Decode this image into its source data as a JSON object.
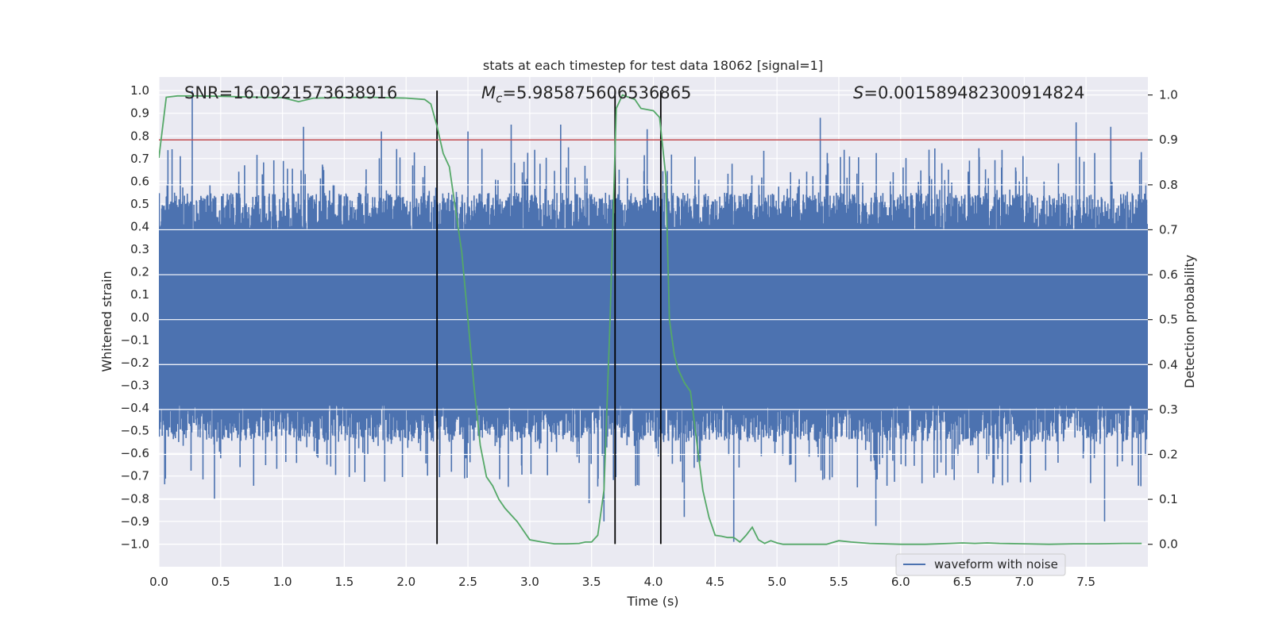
{
  "chart_data": {
    "type": "line",
    "title": "stats at each timestep for test data 18062 [signal=1]",
    "xlabel": "Time (s)",
    "ylabel_left": "Whitened strain",
    "ylabel_right": "Detection probability",
    "xlim": [
      0.0,
      8.0
    ],
    "ylim_left": [
      -1.1,
      1.06
    ],
    "ylim_right": [
      -0.05,
      1.04
    ],
    "x_ticks": [
      "0.0",
      "0.5",
      "1.0",
      "1.5",
      "2.0",
      "2.5",
      "3.0",
      "3.5",
      "4.0",
      "4.5",
      "5.0",
      "5.5",
      "6.0",
      "6.5",
      "7.0",
      "7.5"
    ],
    "y_left_ticks": [
      "1.0",
      "0.9",
      "0.8",
      "0.7",
      "0.6",
      "0.5",
      "0.4",
      "0.3",
      "0.2",
      "0.1",
      "0.0",
      "-0.1",
      "-0.2",
      "-0.3",
      "-0.4",
      "-0.5",
      "-0.6",
      "-0.7",
      "-0.8",
      "-0.9",
      "-1.0"
    ],
    "y_right_ticks": [
      "1.0",
      "0.9",
      "0.8",
      "0.7",
      "0.6",
      "0.5",
      "0.4",
      "0.3",
      "0.2",
      "0.1",
      "0.0"
    ],
    "annotations": {
      "snr": "SNR=16.0921573638916",
      "mc_symbol": "M",
      "mc_sub": "c",
      "mc_value": "=5.985875606536865",
      "s_symbol": "S",
      "s_value": "=0.001589482300914824"
    },
    "legend": {
      "location": "lower-right",
      "entries": [
        "waveform with noise"
      ]
    },
    "grid": true,
    "colors": {
      "waveform": "#4c72b0",
      "probability": "#55a868",
      "threshold": "#c44e52",
      "markers": "#000000",
      "background": "#eaeaf2"
    },
    "threshold_line": {
      "axis": "right",
      "y": 0.9
    },
    "vertical_lines": [
      {
        "x": 2.25,
        "ymin_left": -1.0,
        "ymax_left": 1.0
      },
      {
        "x": 3.69,
        "ymin_left": -1.0,
        "ymax_left": 1.0
      },
      {
        "x": 4.06,
        "ymin_left": -1.0,
        "ymax_left": 1.0
      }
    ],
    "series": [
      {
        "name": "waveform with noise",
        "axis": "left",
        "kind": "noise-band",
        "x_range": [
          0.0,
          8.0
        ],
        "dense_band": [
          -0.4,
          0.4
        ],
        "approx_extreme_spikes": [
          {
            "x": 0.27,
            "y": 1.0
          },
          {
            "x": 1.17,
            "y": 0.84
          },
          {
            "x": 1.8,
            "y": 0.82
          },
          {
            "x": 2.5,
            "y": 0.82
          },
          {
            "x": 2.85,
            "y": 0.85
          },
          {
            "x": 3.25,
            "y": 0.85
          },
          {
            "x": 3.95,
            "y": 0.83
          },
          {
            "x": 5.35,
            "y": 0.88
          },
          {
            "x": 7.42,
            "y": 0.86
          },
          {
            "x": 7.7,
            "y": 0.84
          },
          {
            "x": 0.45,
            "y": -0.8
          },
          {
            "x": 3.48,
            "y": -0.82
          },
          {
            "x": 3.6,
            "y": -0.9
          },
          {
            "x": 4.25,
            "y": -0.88
          },
          {
            "x": 4.65,
            "y": -0.99
          },
          {
            "x": 5.8,
            "y": -0.92
          },
          {
            "x": 7.65,
            "y": -0.9
          }
        ]
      },
      {
        "name": "detection probability",
        "axis": "right",
        "kind": "line",
        "x": [
          0.0,
          0.06,
          0.15,
          0.3,
          0.5,
          0.8,
          1.0,
          1.13,
          1.25,
          1.45,
          1.7,
          2.0,
          2.15,
          2.2,
          2.25,
          2.3,
          2.35,
          2.45,
          2.5,
          2.55,
          2.6,
          2.65,
          2.7,
          2.75,
          2.8,
          2.9,
          3.0,
          3.1,
          3.2,
          3.3,
          3.4,
          3.45,
          3.5,
          3.55,
          3.6,
          3.65,
          3.7,
          3.75,
          3.8,
          3.85,
          3.9,
          4.0,
          4.05,
          4.1,
          4.13,
          4.17,
          4.2,
          4.25,
          4.3,
          4.35,
          4.4,
          4.45,
          4.5,
          4.55,
          4.6,
          4.65,
          4.7,
          4.75,
          4.8,
          4.85,
          4.9,
          4.95,
          5.0,
          5.05,
          5.1,
          5.2,
          5.3,
          5.4,
          5.5,
          5.6,
          5.75,
          6.0,
          6.2,
          6.4,
          6.5,
          6.6,
          6.7,
          6.8,
          7.0,
          7.2,
          7.4,
          7.6,
          7.8,
          7.95
        ],
        "y": [
          0.86,
          0.995,
          0.998,
          0.998,
          0.997,
          0.995,
          0.994,
          0.985,
          0.993,
          0.994,
          0.995,
          0.993,
          0.99,
          0.98,
          0.93,
          0.87,
          0.84,
          0.65,
          0.5,
          0.35,
          0.22,
          0.15,
          0.13,
          0.1,
          0.08,
          0.05,
          0.01,
          0.005,
          0.001,
          0.001,
          0.002,
          0.005,
          0.005,
          0.02,
          0.12,
          0.5,
          0.97,
          1.0,
          0.995,
          0.99,
          0.97,
          0.965,
          0.95,
          0.82,
          0.5,
          0.42,
          0.39,
          0.36,
          0.34,
          0.23,
          0.12,
          0.06,
          0.02,
          0.018,
          0.015,
          0.015,
          0.005,
          0.02,
          0.038,
          0.01,
          0.002,
          0.008,
          0.003,
          0.0,
          0.0,
          0.0,
          0.0,
          0.0,
          0.008,
          0.005,
          0.002,
          0.0,
          0.0,
          0.002,
          0.003,
          0.002,
          0.003,
          0.002,
          0.001,
          0.0,
          0.001,
          0.001,
          0.002,
          0.002
        ]
      }
    ]
  }
}
